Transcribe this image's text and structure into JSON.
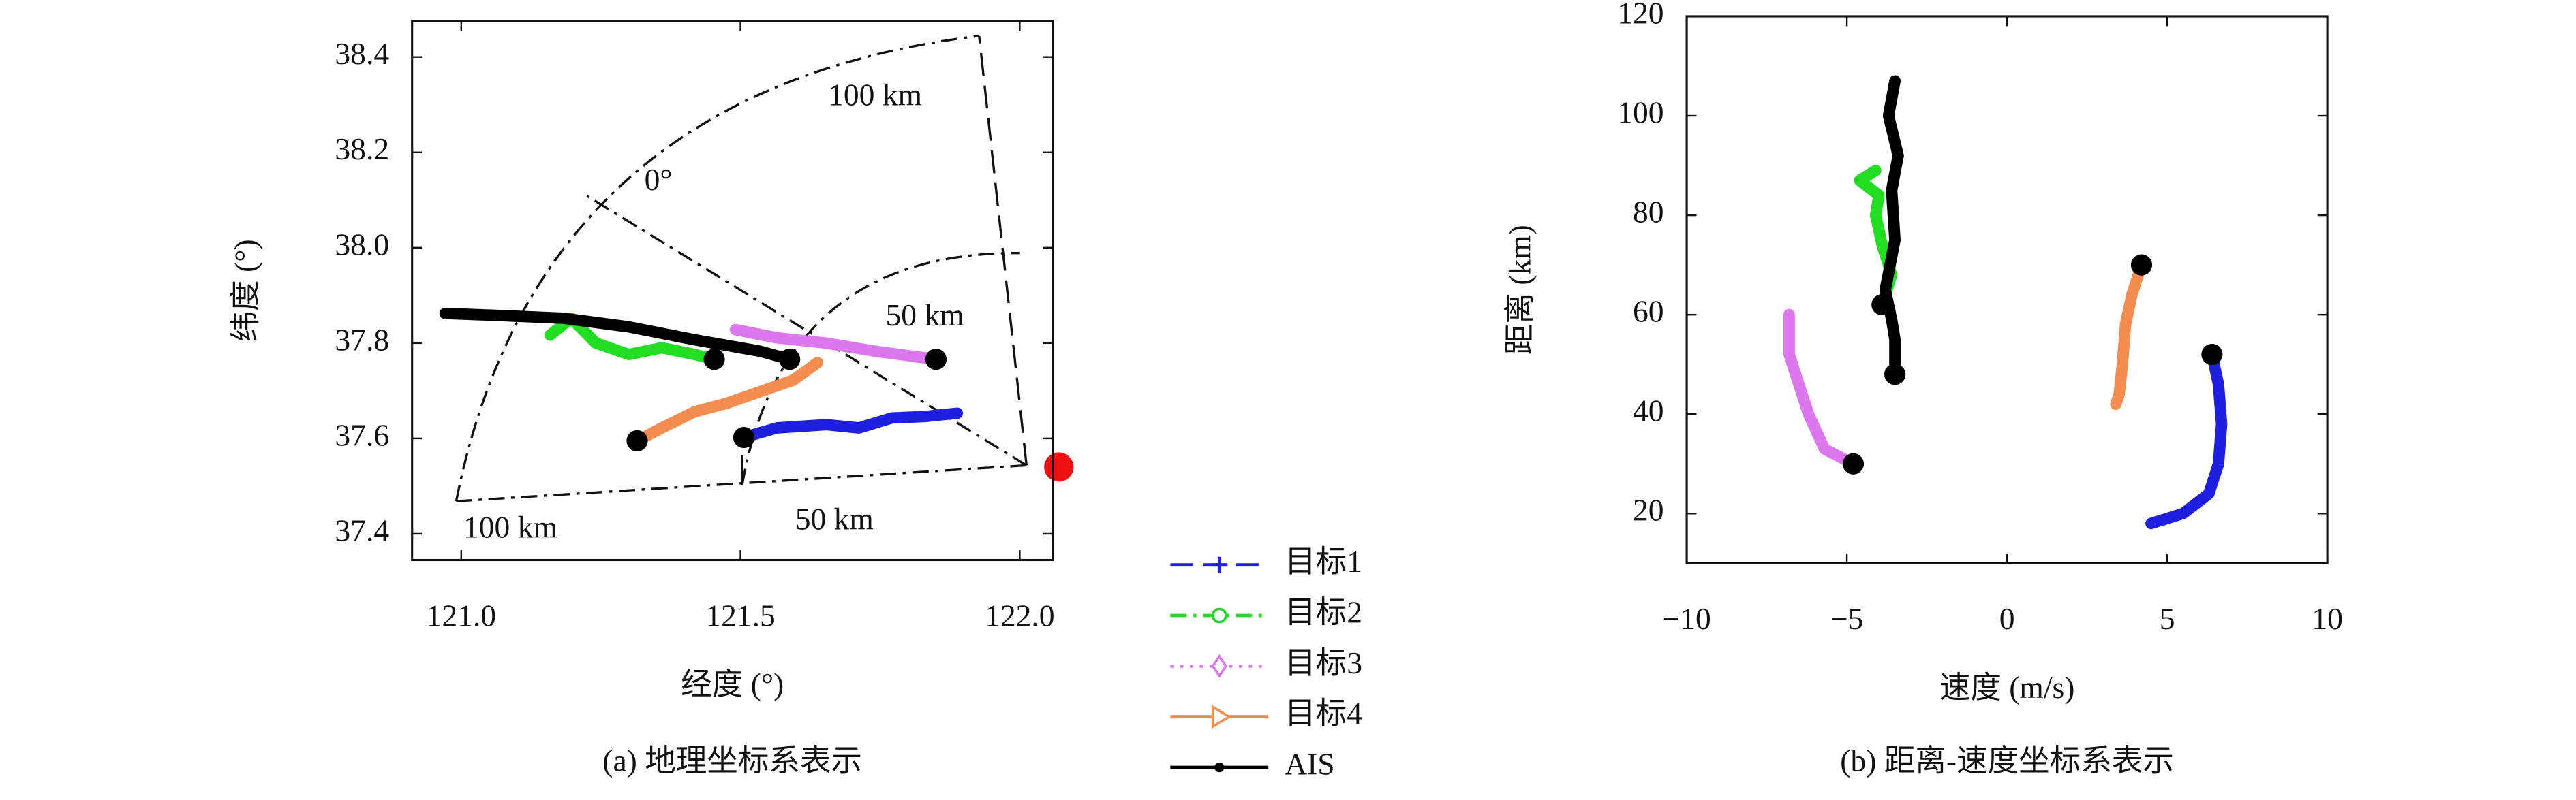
{
  "chart_data": [
    {
      "type": "line",
      "caption": "(a) 地理坐标系表示",
      "x_label": "经度 (°)",
      "y_label": "纬度 (°)",
      "xlim": [
        120.912,
        122.059
      ],
      "ylim": [
        37.345,
        38.475
      ],
      "xticks": [
        {
          "value": 121,
          "label": "121.0"
        },
        121.5,
        {
          "value": 122,
          "label": "122.0"
        }
      ],
      "yticks": [
        37.4,
        37.6,
        37.8,
        {
          "value": 38,
          "label": "38.0"
        },
        38.2,
        38.4
      ],
      "legend": "outside-right",
      "series": [
        {
          "name": "目标1",
          "color": "#1f1fe0",
          "line_style": "dashed",
          "marker": "plus",
          "x": [
            121.506,
            121.565,
            121.653,
            121.712,
            121.771,
            121.83,
            121.888
          ],
          "values": [
            37.602,
            37.622,
            37.629,
            37.622,
            37.643,
            37.646,
            37.653
          ]
        },
        {
          "name": "目标2",
          "color": "#22dd22",
          "line_style": "dashdot",
          "marker": "circle",
          "x": [
            121.453,
            121.418,
            121.359,
            121.3,
            121.241,
            121.197,
            121.159
          ],
          "values": [
            37.766,
            37.776,
            37.79,
            37.776,
            37.8,
            37.852,
            37.817
          ]
        },
        {
          "name": "目标3",
          "color": "#dd77ee",
          "line_style": "dotted",
          "marker": "diamond",
          "x": [
            121.85,
            121.741,
            121.653,
            121.565,
            121.491
          ],
          "values": [
            37.766,
            37.783,
            37.8,
            37.811,
            37.828
          ]
        },
        {
          "name": "目标4",
          "color": "#f58c50",
          "line_style": "solid",
          "marker": "triangle",
          "x": [
            121.315,
            121.359,
            121.418,
            121.476,
            121.535,
            121.594,
            121.638
          ],
          "values": [
            37.595,
            37.622,
            37.656,
            37.674,
            37.698,
            37.722,
            37.759
          ]
        },
        {
          "name": "AIS",
          "color": "#000000",
          "line_style": "solid",
          "marker": "dot",
          "x": [
            121.588,
            121.535,
            121.418,
            121.3,
            121.182,
            121.065,
            120.971
          ],
          "values": [
            37.766,
            37.783,
            37.807,
            37.834,
            37.852,
            37.858,
            37.862
          ]
        }
      ],
      "radar": {
        "x": 122.07,
        "y": 37.54,
        "color": "#ee1111"
      },
      "annotations": [
        {
          "text": "100 km",
          "x": 121.741,
          "y": 38.314
        },
        {
          "text": "0°",
          "x": 121.353,
          "y": 38.136
        },
        {
          "text": "50 km",
          "x": 121.83,
          "y": 37.852
        },
        {
          "text": "50 km",
          "x": 121.668,
          "y": 37.424
        },
        {
          "text": "100 km",
          "x": 121.088,
          "y": 37.407
        }
      ]
    },
    {
      "type": "line",
      "caption": "(b) 距离-速度坐标系表示",
      "x_label": "速度 (m/s)",
      "y_label": "距离 (km)",
      "xlim": [
        -10,
        10
      ],
      "ylim": [
        10,
        120
      ],
      "xticks": [
        {
          "value": -10,
          "label": "−10"
        },
        {
          "value": -5,
          "label": "−5"
        },
        0,
        5,
        10
      ],
      "yticks": [
        20,
        40,
        60,
        80,
        100,
        120
      ],
      "series": [
        {
          "color": "#1f1fe0",
          "x": [
            6.4,
            6.6,
            6.7,
            6.6,
            6.3,
            5.5,
            4.5
          ],
          "values": [
            52,
            46,
            38,
            30,
            24,
            20,
            18
          ]
        },
        {
          "color": "#22dd22",
          "x": [
            -3.9,
            -3.6,
            -3.9,
            -4.1,
            -4.0,
            -4.6,
            -4.1
          ],
          "values": [
            62,
            68,
            74,
            80,
            84,
            87,
            89
          ]
        },
        {
          "color": "#dd77ee",
          "x": [
            -4.8,
            -5.7,
            -6.2,
            -6.5,
            -6.8,
            -6.8
          ],
          "values": [
            30,
            33,
            40,
            46,
            52,
            60
          ]
        },
        {
          "color": "#f58c50",
          "x": [
            4.2,
            3.9,
            3.7,
            3.6,
            3.5,
            3.4
          ],
          "values": [
            70,
            64,
            58,
            50,
            44,
            42
          ]
        },
        {
          "color": "#000000",
          "x": [
            -3.5,
            -3.5,
            -3.6,
            -3.8,
            -3.5,
            -3.6,
            -3.4,
            -3.7,
            -3.5
          ],
          "values": [
            48,
            55,
            59,
            65,
            75,
            85,
            92,
            100,
            107
          ]
        }
      ]
    }
  ]
}
